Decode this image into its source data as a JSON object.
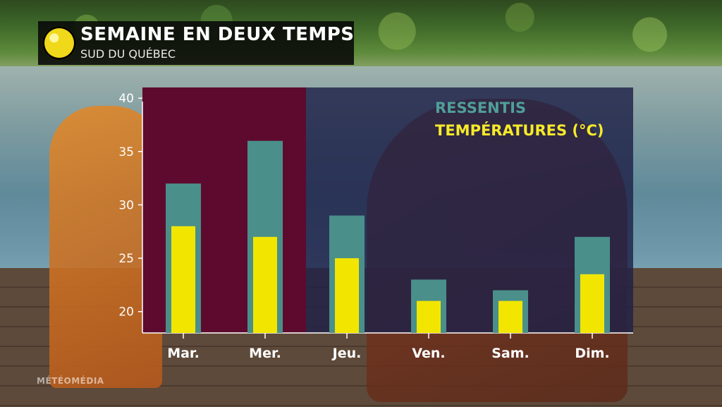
{
  "header": {
    "title": "SEMAINE EN DEUX TEMPS",
    "subtitle": "SUD DU QUÉBEC"
  },
  "watermark": "MÉTÉOMÉDIA",
  "logo_icon": "meteomedia-logo-icon",
  "colors": {
    "ressentis": "#4a8f8a",
    "temperatures": "#f2e600",
    "hot_panel": "#5e0a2e",
    "cool_panel": "#1f2148"
  },
  "chart_data": {
    "type": "bar",
    "categories": [
      "Mar.",
      "Mer.",
      "Jeu.",
      "Ven.",
      "Sam.",
      "Dim."
    ],
    "series": [
      {
        "name": "RESSENTIS",
        "values": [
          32,
          36,
          29,
          23,
          22,
          27
        ]
      },
      {
        "name": "TEMPÉRATURES (°C)",
        "values": [
          28,
          27,
          25,
          21,
          21,
          23.5
        ]
      }
    ],
    "legend": [
      "RESSENTIS",
      "TEMPÉRATURES (°C)"
    ],
    "legend_placement": "top-right",
    "yticks": [
      20,
      25,
      30,
      35,
      40
    ],
    "ylim": [
      18,
      41
    ],
    "hot_days": [
      "Mar.",
      "Mer."
    ],
    "grid": false
  }
}
